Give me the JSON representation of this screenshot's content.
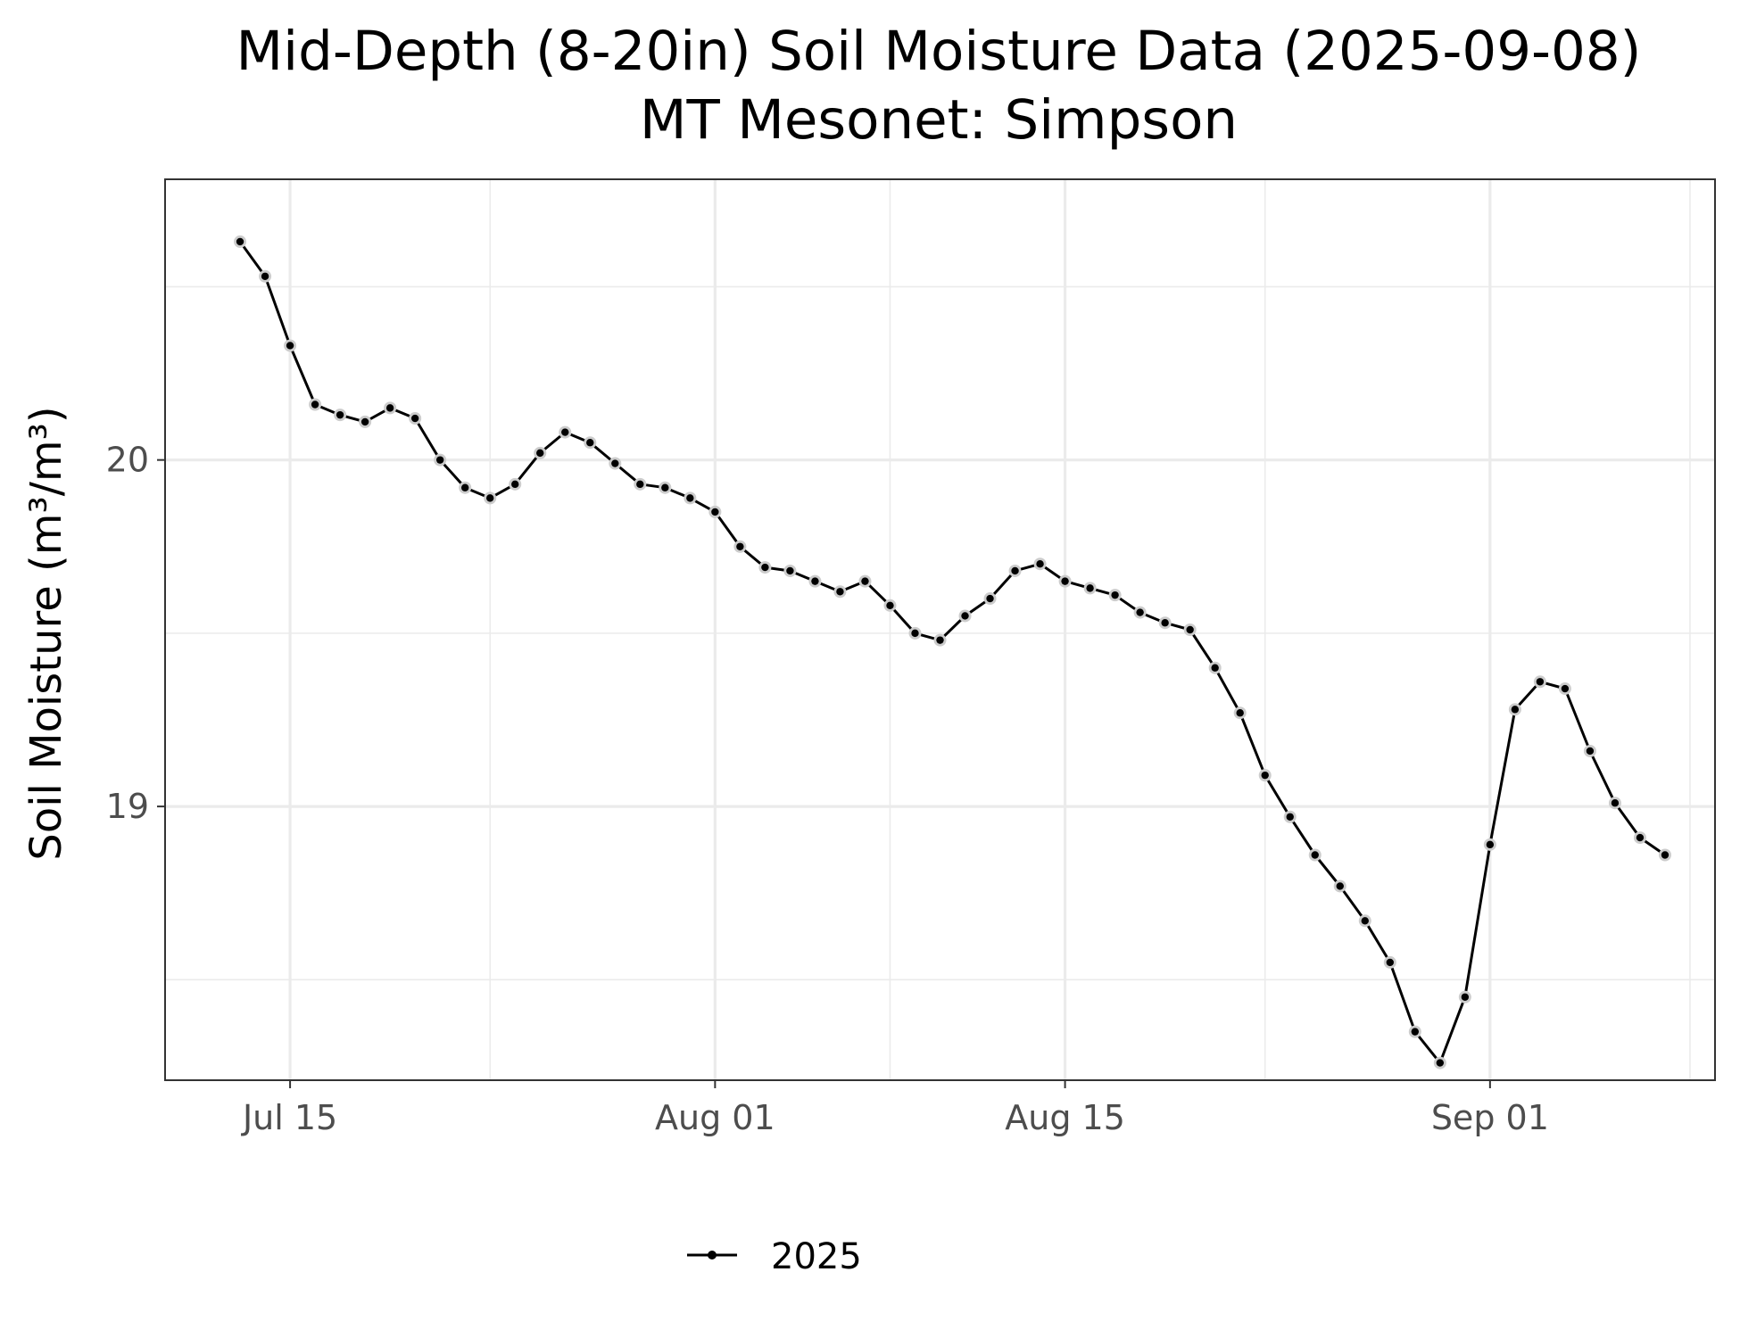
{
  "chart_data": {
    "type": "line",
    "title": "Mid-Depth (8-20in) Soil Moisture Data (2025-09-08)",
    "subtitle": "MT Mesonet: Simpson",
    "xlabel": "",
    "ylabel": "Soil Moisture (m³/m³)",
    "x_type": "date",
    "xlim": [
      "2025-07-10",
      "2025-09-10"
    ],
    "ylim": [
      18.21,
      20.81
    ],
    "x_ticks": [
      {
        "date": "2025-07-15",
        "label": "Jul 15"
      },
      {
        "date": "2025-08-01",
        "label": "Aug 01"
      },
      {
        "date": "2025-08-15",
        "label": "Aug 15"
      },
      {
        "date": "2025-09-01",
        "label": "Sep 01"
      }
    ],
    "y_ticks": [
      {
        "value": 19,
        "label": "19"
      },
      {
        "value": 20,
        "label": "20"
      }
    ],
    "grid": true,
    "legend_position": "bottom",
    "series": [
      {
        "name": "2025",
        "color": "#000000",
        "x": [
          "2025-07-13",
          "2025-07-14",
          "2025-07-15",
          "2025-07-16",
          "2025-07-17",
          "2025-07-18",
          "2025-07-19",
          "2025-07-20",
          "2025-07-21",
          "2025-07-22",
          "2025-07-23",
          "2025-07-24",
          "2025-07-25",
          "2025-07-26",
          "2025-07-27",
          "2025-07-28",
          "2025-07-29",
          "2025-07-30",
          "2025-07-31",
          "2025-08-01",
          "2025-08-02",
          "2025-08-03",
          "2025-08-04",
          "2025-08-05",
          "2025-08-06",
          "2025-08-07",
          "2025-08-08",
          "2025-08-09",
          "2025-08-10",
          "2025-08-11",
          "2025-08-12",
          "2025-08-13",
          "2025-08-14",
          "2025-08-15",
          "2025-08-16",
          "2025-08-17",
          "2025-08-18",
          "2025-08-19",
          "2025-08-20",
          "2025-08-21",
          "2025-08-22",
          "2025-08-23",
          "2025-08-24",
          "2025-08-25",
          "2025-08-26",
          "2025-08-27",
          "2025-08-28",
          "2025-08-29",
          "2025-08-30",
          "2025-08-31",
          "2025-09-01",
          "2025-09-02",
          "2025-09-03",
          "2025-09-04",
          "2025-09-05",
          "2025-09-06",
          "2025-09-07",
          "2025-09-08"
        ],
        "values": [
          20.63,
          20.53,
          20.33,
          20.16,
          20.13,
          20.11,
          20.15,
          20.12,
          20.0,
          19.92,
          19.89,
          19.93,
          20.02,
          20.08,
          20.05,
          19.99,
          19.93,
          19.92,
          19.89,
          19.85,
          19.75,
          19.69,
          19.68,
          19.65,
          19.62,
          19.65,
          19.58,
          19.5,
          19.48,
          19.55,
          19.6,
          19.68,
          19.7,
          19.65,
          19.63,
          19.61,
          19.56,
          19.53,
          19.51,
          19.4,
          19.27,
          19.09,
          18.97,
          18.86,
          18.77,
          18.67,
          18.55,
          18.35,
          18.26,
          18.45,
          18.89,
          19.28,
          19.36,
          19.34,
          19.16,
          19.01,
          18.91,
          18.86
        ]
      }
    ]
  }
}
